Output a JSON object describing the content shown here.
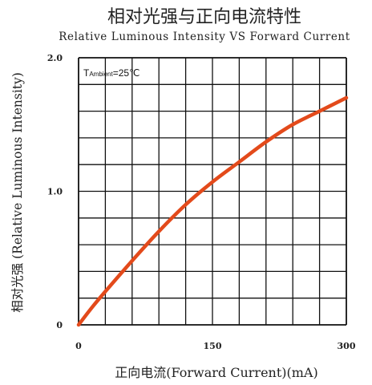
{
  "chart_data": {
    "type": "line",
    "title": "相对光强与正向电流特性",
    "subtitle": "Relative Luminous Intensity VS Forward Current",
    "xlabel": "正向电流(Forward Current)(mA)",
    "ylabel": "相对光强 (Relative Luminous Intensity)",
    "annotation": {
      "prefix": "T",
      "sub": "Ambient",
      "suffix": "=25℃"
    },
    "xlim": [
      0,
      300
    ],
    "ylim": [
      0,
      2.0
    ],
    "x_ticks": [
      {
        "value": 0,
        "label": "0"
      },
      {
        "value": 150,
        "label": "150"
      },
      {
        "value": 300,
        "label": "300"
      }
    ],
    "y_ticks": [
      {
        "value": 0,
        "label": "0"
      },
      {
        "value": 1.0,
        "label": "1.0"
      },
      {
        "value": 2.0,
        "label": "2.0"
      }
    ],
    "grid": true,
    "grid_divisions_x": 10,
    "grid_divisions_y": 10,
    "series": [
      {
        "color": "#e34a1b",
        "x": [
          0,
          15,
          30,
          60,
          90,
          120,
          150,
          180,
          210,
          240,
          270,
          300
        ],
        "y": [
          0.0,
          0.13,
          0.25,
          0.48,
          0.7,
          0.9,
          1.07,
          1.22,
          1.37,
          1.5,
          1.6,
          1.7
        ]
      }
    ]
  }
}
